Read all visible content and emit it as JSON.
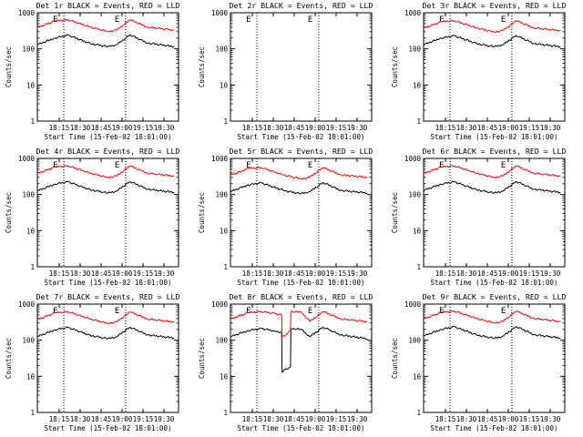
{
  "figure": {
    "background": "#ffffff",
    "axis_color": "#000000",
    "events_color": "#000000",
    "lld_color": "#ff0000"
  },
  "chart_data": [
    {
      "type": "line",
      "title": "Det 1r BLACK = Events, RED = LLD",
      "xlabel": "Start Time (15-Feb-02 18:01:00)",
      "ylabel": "Counts/sec",
      "yscale": "log",
      "ylim": [
        1,
        1000
      ],
      "xlim": [
        "18:06",
        "18:38"
      ],
      "x_ticks": [
        "18:15",
        "18:30",
        "18:45",
        "19:00",
        "19:15",
        "19:30"
      ],
      "y_ticks": [
        "1",
        "10",
        "100",
        "1000"
      ],
      "markers": [
        {
          "label": "E",
          "x": "18:12"
        },
        {
          "label": "E",
          "x": "18:26"
        }
      ],
      "data_present": true,
      "series": [
        {
          "name": "Events",
          "color": "#000000",
          "x": [
            "18:06",
            "18:10",
            "18:13",
            "18:18",
            "18:22",
            "18:24",
            "18:27",
            "18:31",
            "18:37"
          ],
          "values": [
            130,
            200,
            240,
            140,
            115,
            130,
            245,
            145,
            115
          ]
        },
        {
          "name": "LLD",
          "color": "#ff0000",
          "x": [
            "18:06",
            "18:10",
            "18:13",
            "18:18",
            "18:22",
            "18:24",
            "18:27",
            "18:31",
            "18:37"
          ],
          "values": [
            390,
            590,
            640,
            400,
            300,
            330,
            640,
            400,
            330
          ]
        }
      ]
    },
    {
      "type": "line",
      "title": "Det 2r BLACK = Events, RED = LLD",
      "xlabel": "Start Time (15-Feb-02 18:01:00)",
      "ylabel": "Counts/sec",
      "yscale": "log",
      "ylim": [
        1,
        1000
      ],
      "xlim": [
        "18:06",
        "18:38"
      ],
      "x_ticks": [
        "18:15",
        "18:30",
        "18:45",
        "19:00",
        "19:15",
        "19:30"
      ],
      "y_ticks": [
        "1",
        "10",
        "100",
        "1000"
      ],
      "markers": [
        {
          "label": "E",
          "x": "18:12"
        },
        {
          "label": "E",
          "x": "18:26"
        }
      ],
      "data_present": false,
      "series": []
    },
    {
      "type": "line",
      "title": "Det 3r BLACK = Events, RED = LLD",
      "xlabel": "Start Time (15-Feb-02 18:01:00)",
      "ylabel": "Counts/sec",
      "yscale": "log",
      "ylim": [
        1,
        1000
      ],
      "xlim": [
        "18:06",
        "18:38"
      ],
      "x_ticks": [
        "18:15",
        "18:30",
        "18:45",
        "19:00",
        "19:15",
        "19:30"
      ],
      "y_ticks": [
        "1",
        "10",
        "100",
        "1000"
      ],
      "markers": [
        {
          "label": "E",
          "x": "18:12"
        },
        {
          "label": "E",
          "x": "18:26"
        }
      ],
      "data_present": true,
      "series": [
        {
          "name": "Events",
          "color": "#000000",
          "x": [
            "18:06",
            "18:10",
            "18:13",
            "18:18",
            "18:22",
            "18:24",
            "18:27",
            "18:31",
            "18:37"
          ],
          "values": [
            130,
            200,
            230,
            140,
            115,
            130,
            235,
            140,
            115
          ]
        },
        {
          "name": "LLD",
          "color": "#ff0000",
          "x": [
            "18:06",
            "18:10",
            "18:13",
            "18:18",
            "18:22",
            "18:24",
            "18:27",
            "18:31",
            "18:37"
          ],
          "values": [
            370,
            560,
            600,
            380,
            290,
            320,
            600,
            380,
            320
          ]
        }
      ]
    },
    {
      "type": "line",
      "title": "Det 4r BLACK = Events, RED = LLD",
      "xlabel": "Start Time (15-Feb-02 18:01:00)",
      "ylabel": "Counts/sec",
      "yscale": "log",
      "ylim": [
        1,
        1000
      ],
      "xlim": [
        "18:06",
        "18:38"
      ],
      "x_ticks": [
        "18:15",
        "18:30",
        "18:45",
        "19:00",
        "19:15",
        "19:30"
      ],
      "y_ticks": [
        "1",
        "10",
        "100",
        "1000"
      ],
      "markers": [
        {
          "label": "E",
          "x": "18:12"
        },
        {
          "label": "E",
          "x": "18:26"
        }
      ],
      "data_present": true,
      "series": [
        {
          "name": "Events",
          "color": "#000000",
          "x": [
            "18:06",
            "18:10",
            "18:13",
            "18:18",
            "18:22",
            "18:24",
            "18:27",
            "18:31",
            "18:37"
          ],
          "values": [
            125,
            195,
            225,
            135,
            110,
            125,
            230,
            140,
            115
          ]
        },
        {
          "name": "LLD",
          "color": "#ff0000",
          "x": [
            "18:06",
            "18:10",
            "18:13",
            "18:18",
            "18:22",
            "18:24",
            "18:27",
            "18:31",
            "18:37"
          ],
          "values": [
            380,
            580,
            620,
            390,
            295,
            325,
            620,
            390,
            325
          ]
        }
      ]
    },
    {
      "type": "line",
      "title": "Det 5r BLACK = Events, RED = LLD",
      "xlabel": "Start Time (15-Feb-02 18:01:00)",
      "ylabel": "Counts/sec",
      "yscale": "log",
      "ylim": [
        1,
        1000
      ],
      "xlim": [
        "18:06",
        "18:38"
      ],
      "x_ticks": [
        "18:15",
        "18:30",
        "18:45",
        "19:00",
        "19:15",
        "19:30"
      ],
      "y_ticks": [
        "1",
        "10",
        "100",
        "1000"
      ],
      "markers": [
        {
          "label": "E",
          "x": "18:12"
        },
        {
          "label": "E",
          "x": "18:26"
        }
      ],
      "data_present": true,
      "series": [
        {
          "name": "Events",
          "color": "#000000",
          "x": [
            "18:06",
            "18:10",
            "18:13",
            "18:18",
            "18:22",
            "18:24",
            "18:27",
            "18:31",
            "18:37"
          ],
          "values": [
            120,
            185,
            210,
            130,
            105,
            120,
            215,
            130,
            110
          ]
        },
        {
          "name": "LLD",
          "color": "#ff0000",
          "x": [
            "18:06",
            "18:10",
            "18:13",
            "18:18",
            "18:22",
            "18:24",
            "18:27",
            "18:31",
            "18:37"
          ],
          "values": [
            340,
            520,
            560,
            350,
            270,
            300,
            560,
            350,
            300
          ]
        }
      ]
    },
    {
      "type": "line",
      "title": "Det 6r BLACK = Events, RED = LLD",
      "xlabel": "Start Time (15-Feb-02 18:01:00)",
      "ylabel": "Counts/sec",
      "yscale": "log",
      "ylim": [
        1,
        1000
      ],
      "xlim": [
        "18:06",
        "18:38"
      ],
      "x_ticks": [
        "18:15",
        "18:30",
        "18:45",
        "19:00",
        "19:15",
        "19:30"
      ],
      "y_ticks": [
        "1",
        "10",
        "100",
        "1000"
      ],
      "markers": [
        {
          "label": "E",
          "x": "18:12"
        },
        {
          "label": "E",
          "x": "18:26"
        }
      ],
      "data_present": true,
      "series": [
        {
          "name": "Events",
          "color": "#000000",
          "x": [
            "18:06",
            "18:10",
            "18:13",
            "18:18",
            "18:22",
            "18:24",
            "18:27",
            "18:31",
            "18:37"
          ],
          "values": [
            130,
            195,
            225,
            135,
            110,
            125,
            230,
            140,
            115
          ]
        },
        {
          "name": "LLD",
          "color": "#ff0000",
          "x": [
            "18:06",
            "18:10",
            "18:13",
            "18:18",
            "18:22",
            "18:24",
            "18:27",
            "18:31",
            "18:37"
          ],
          "values": [
            380,
            580,
            620,
            390,
            295,
            325,
            620,
            390,
            325
          ]
        }
      ]
    },
    {
      "type": "line",
      "title": "Det 7r BLACK = Events, RED = LLD",
      "xlabel": "Start Time (15-Feb-02 18:01:00)",
      "ylabel": "Counts/sec",
      "yscale": "log",
      "ylim": [
        1,
        1000
      ],
      "xlim": [
        "18:06",
        "18:38"
      ],
      "x_ticks": [
        "18:15",
        "18:30",
        "18:45",
        "19:00",
        "19:15",
        "19:30"
      ],
      "y_ticks": [
        "1",
        "10",
        "100",
        "1000"
      ],
      "markers": [
        {
          "label": "E",
          "x": "18:12"
        },
        {
          "label": "E",
          "x": "18:26"
        }
      ],
      "data_present": true,
      "series": [
        {
          "name": "Events",
          "color": "#000000",
          "x": [
            "18:06",
            "18:10",
            "18:13",
            "18:18",
            "18:22",
            "18:24",
            "18:27",
            "18:31",
            "18:37"
          ],
          "values": [
            125,
            195,
            225,
            135,
            110,
            125,
            230,
            140,
            115
          ]
        },
        {
          "name": "LLD",
          "color": "#ff0000",
          "x": [
            "18:06",
            "18:10",
            "18:13",
            "18:18",
            "18:22",
            "18:24",
            "18:27",
            "18:31",
            "18:37"
          ],
          "values": [
            370,
            570,
            610,
            385,
            290,
            320,
            610,
            385,
            320
          ]
        }
      ]
    },
    {
      "type": "line",
      "title": "Det 8r BLACK = Events, RED = LLD",
      "xlabel": "Start Time (15-Feb-02 18:01:00)",
      "ylabel": "Counts/sec",
      "yscale": "log",
      "ylim": [
        1,
        1000
      ],
      "xlim": [
        "18:06",
        "18:38"
      ],
      "x_ticks": [
        "18:15",
        "18:30",
        "18:45",
        "19:00",
        "19:15",
        "19:30"
      ],
      "y_ticks": [
        "1",
        "10",
        "100",
        "1000"
      ],
      "markers": [
        {
          "label": "E",
          "x": "18:12"
        },
        {
          "label": "E",
          "x": "18:26"
        }
      ],
      "data_present": true,
      "series": [
        {
          "name": "Events",
          "color": "#000000",
          "x": [
            "18:06",
            "18:10",
            "18:13",
            "18:16",
            "18:17.6",
            "18:17.7",
            "18:18.6",
            "18:19.6",
            "18:19.7",
            "18:22",
            "18:24",
            "18:27",
            "18:31",
            "18:37"
          ],
          "values": [
            125,
            185,
            210,
            180,
            165,
            13,
            16,
            18,
            210,
            200,
            125,
            230,
            140,
            110
          ]
        },
        {
          "name": "LLD",
          "color": "#ff0000",
          "x": [
            "18:06",
            "18:10",
            "18:13",
            "18:16",
            "18:17.6",
            "18:17.7",
            "18:18.6",
            "18:19.6",
            "18:19.7",
            "18:22",
            "18:24",
            "18:27",
            "18:31",
            "18:37"
          ],
          "values": [
            380,
            580,
            620,
            550,
            500,
            120,
            140,
            180,
            620,
            600,
            330,
            620,
            390,
            325
          ]
        }
      ]
    },
    {
      "type": "line",
      "title": "Det 9r BLACK = Events, RED = LLD",
      "xlabel": "Start Time (15-Feb-02 18:01:00)",
      "ylabel": "Counts/sec",
      "yscale": "log",
      "ylim": [
        1,
        1000
      ],
      "xlim": [
        "18:06",
        "18:38"
      ],
      "x_ticks": [
        "18:15",
        "18:30",
        "18:45",
        "19:00",
        "19:15",
        "19:30"
      ],
      "y_ticks": [
        "1",
        "10",
        "100",
        "1000"
      ],
      "markers": [
        {
          "label": "E",
          "x": "18:12"
        },
        {
          "label": "E",
          "x": "18:26"
        }
      ],
      "data_present": true,
      "series": [
        {
          "name": "Events",
          "color": "#000000",
          "x": [
            "18:06",
            "18:10",
            "18:13",
            "18:18",
            "18:22",
            "18:24",
            "18:27",
            "18:31",
            "18:37"
          ],
          "values": [
            130,
            200,
            235,
            140,
            112,
            128,
            240,
            142,
            115
          ]
        },
        {
          "name": "LLD",
          "color": "#ff0000",
          "x": [
            "18:06",
            "18:10",
            "18:13",
            "18:18",
            "18:22",
            "18:24",
            "18:27",
            "18:31",
            "18:37"
          ],
          "values": [
            390,
            590,
            640,
            400,
            300,
            330,
            640,
            400,
            330
          ]
        }
      ]
    }
  ]
}
